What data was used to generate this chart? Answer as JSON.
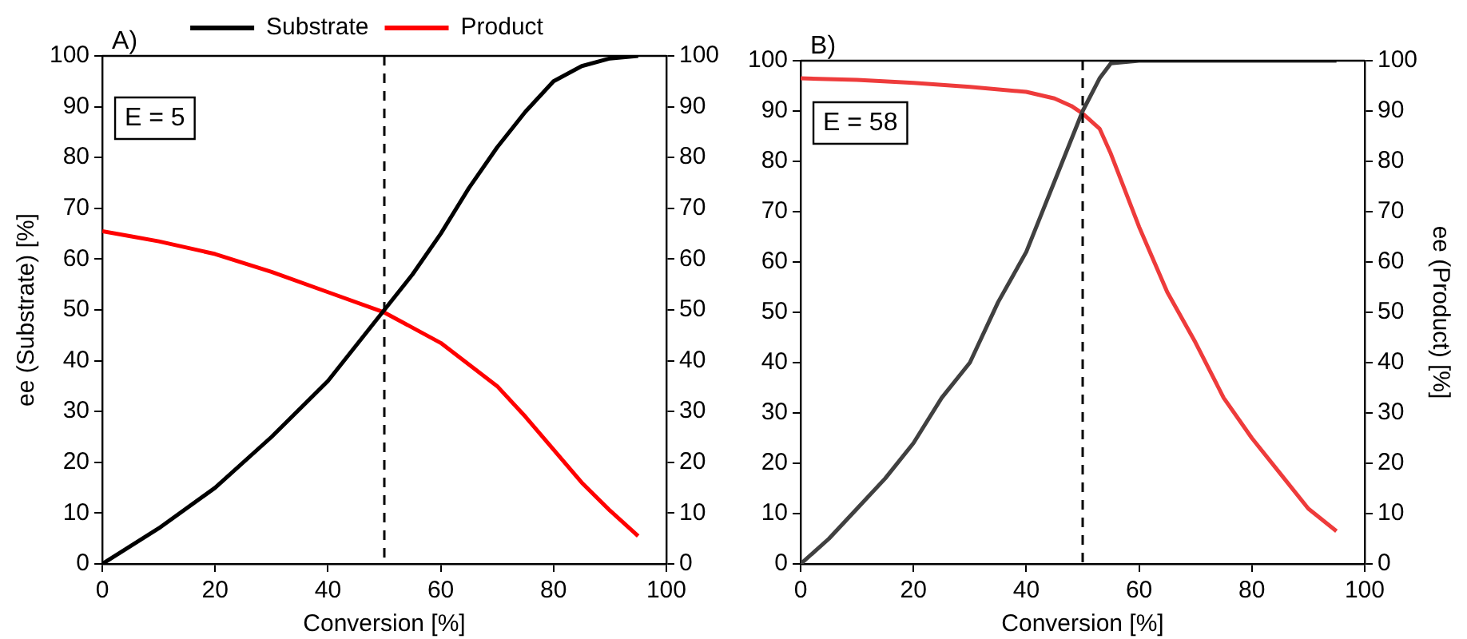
{
  "chart_data": [
    {
      "type": "line",
      "title": "A)",
      "xlabel": "Conversion [%]",
      "ylabel": "ee (Substrate) [%]",
      "xlim": [
        0,
        100
      ],
      "xticks": [
        0,
        20,
        40,
        60,
        80,
        100
      ],
      "ylim": [
        0,
        100
      ],
      "yticks": [
        0,
        10,
        20,
        30,
        40,
        50,
        60,
        70,
        80,
        90,
        100
      ],
      "y2lim": [
        0,
        100
      ],
      "y2ticks": [
        0,
        10,
        20,
        30,
        40,
        50,
        60,
        70,
        80,
        90,
        100
      ],
      "series": [
        {
          "name": "Substrate",
          "color": "#000000",
          "x": [
            0,
            10,
            20,
            30,
            40,
            50,
            55,
            60,
            65,
            70,
            75,
            80,
            85,
            90,
            95
          ],
          "values": [
            0,
            7,
            15,
            25,
            36,
            50,
            57,
            65,
            74,
            82,
            89,
            95,
            98,
            99.5,
            100
          ]
        },
        {
          "name": "Product",
          "color": "#ff0000",
          "x": [
            0,
            5,
            10,
            20,
            30,
            40,
            50,
            60,
            70,
            75,
            80,
            85,
            90,
            95
          ],
          "values": [
            65.5,
            64.5,
            63.5,
            61,
            57.5,
            53.5,
            49.5,
            43.5,
            35,
            29,
            22.5,
            16,
            10.5,
            5.5
          ]
        }
      ],
      "ref_lines": [
        {
          "axis": "x",
          "value": 50,
          "color": "#000000",
          "line_style": "dashed"
        }
      ],
      "annotations": [
        "E = 5"
      ],
      "legend": "top",
      "grid": false,
      "marker": "none",
      "line_style": "solid"
    },
    {
      "type": "line",
      "title": "B)",
      "xlabel": "Conversion [%]",
      "y2label": "ee (Product) [%]",
      "xlim": [
        0,
        100
      ],
      "xticks": [
        0,
        20,
        40,
        60,
        80,
        100
      ],
      "ylim": [
        0,
        100
      ],
      "yticks": [
        0,
        10,
        20,
        30,
        40,
        50,
        60,
        70,
        80,
        90,
        100
      ],
      "y2lim": [
        0,
        100
      ],
      "y2ticks": [
        0,
        10,
        20,
        30,
        40,
        50,
        60,
        70,
        80,
        90,
        100
      ],
      "series": [
        {
          "color": "#404040",
          "x": [
            0,
            5,
            10,
            15,
            20,
            25,
            30,
            35,
            40,
            45,
            50,
            53,
            55,
            60,
            70,
            80,
            90,
            95
          ],
          "values": [
            0,
            5,
            11,
            17,
            24,
            33,
            40,
            52,
            62,
            76,
            90,
            96.5,
            99.5,
            100,
            100,
            100,
            100,
            100
          ]
        },
        {
          "color": "#ee3b3b",
          "x": [
            0,
            10,
            20,
            30,
            40,
            45,
            48,
            50,
            53,
            55,
            60,
            65,
            70,
            75,
            80,
            85,
            90,
            95
          ],
          "values": [
            96.5,
            96.2,
            95.6,
            94.8,
            93.8,
            92.5,
            91,
            89.5,
            86.5,
            81.5,
            67,
            54,
            44,
            33,
            25,
            18,
            11,
            6.5
          ]
        }
      ],
      "ref_lines": [
        {
          "axis": "x",
          "value": 50,
          "color": "#000000",
          "line_style": "dashed"
        }
      ],
      "annotations": [
        "E = 58"
      ],
      "legend": false,
      "grid": false,
      "marker": "none",
      "line_style": "solid"
    }
  ]
}
